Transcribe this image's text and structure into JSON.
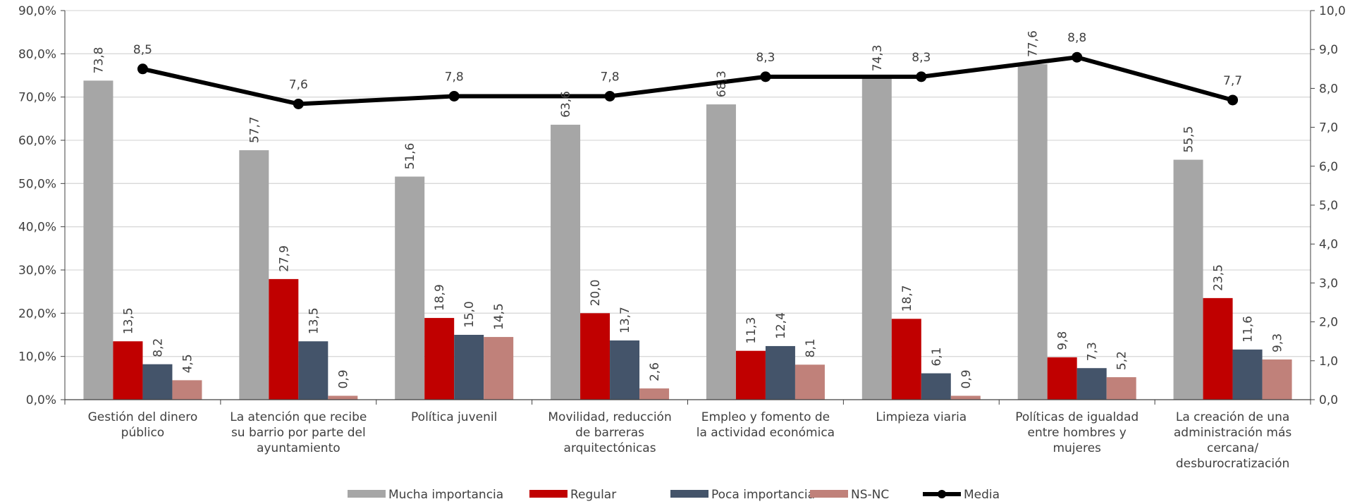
{
  "chart_data": {
    "type": "bar",
    "categories": [
      [
        "Gestión del dinero",
        "público"
      ],
      [
        "La atención que recibe",
        "su barrio por parte del",
        "ayuntamiento"
      ],
      [
        "Política juvenil"
      ],
      [
        "Movilidad, reducción",
        "de barreras",
        "arquitectónicas"
      ],
      [
        "Empleo y fomento de",
        "la actividad económica"
      ],
      [
        "Limpieza viaria"
      ],
      [
        "Políticas de igualdad",
        "entre hombres y",
        "mujeres"
      ],
      [
        "La creación de una",
        "administración más",
        "cercana/",
        "desburocratización"
      ]
    ],
    "series": [
      {
        "name": "Mucha importancia",
        "color": "#a6a6a6",
        "values": [
          73.8,
          57.7,
          51.6,
          63.6,
          68.3,
          74.3,
          77.6,
          55.5
        ],
        "labels": [
          "73,8",
          "57,7",
          "51,6",
          "63,6",
          "68,3",
          "74,3",
          "77,6",
          "55,5"
        ]
      },
      {
        "name": "Regular",
        "color": "#c00000",
        "values": [
          13.5,
          27.9,
          18.9,
          20.0,
          11.3,
          18.7,
          9.8,
          23.5
        ],
        "labels": [
          "13,5",
          "27,9",
          "18,9",
          "20,0",
          "11,3",
          "18,7",
          "9,8",
          "23,5"
        ]
      },
      {
        "name": "Poca importancia",
        "color": "#44546a",
        "values": [
          8.2,
          13.5,
          15.0,
          13.7,
          12.4,
          6.1,
          7.3,
          11.6
        ],
        "labels": [
          "8,2",
          "13,5",
          "15,0",
          "13,7",
          "12,4",
          "6,1",
          "7,3",
          "11,6"
        ]
      },
      {
        "name": "NS-NC",
        "color": "#c0817a",
        "values": [
          4.5,
          0.9,
          14.5,
          2.6,
          8.1,
          0.9,
          5.2,
          9.3
        ],
        "labels": [
          "4,5",
          "0,9",
          "14,5",
          "2,6",
          "8,1",
          "0,9",
          "5,2",
          "9,3"
        ]
      }
    ],
    "line_series": {
      "name": "Media",
      "color": "#000000",
      "axis": "right",
      "values": [
        8.5,
        7.6,
        7.8,
        7.8,
        8.3,
        8.3,
        8.8,
        7.7
      ],
      "labels": [
        "8,5",
        "7,6",
        "7,8",
        "7,8",
        "8,3",
        "8,3",
        "8,8",
        "7,7"
      ]
    },
    "y_left": {
      "range": [
        0,
        90
      ],
      "ticks": [
        "0,0%",
        "10,0%",
        "20,0%",
        "30,0%",
        "40,0%",
        "50,0%",
        "60,0%",
        "70,0%",
        "80,0%",
        "90,0%"
      ]
    },
    "y_right": {
      "range": [
        0,
        10
      ],
      "ticks": [
        "0,0",
        "1,0",
        "2,0",
        "3,0",
        "4,0",
        "5,0",
        "6,0",
        "7,0",
        "8,0",
        "9,0",
        "10,0"
      ]
    },
    "grid": true,
    "legend": "bottom"
  }
}
